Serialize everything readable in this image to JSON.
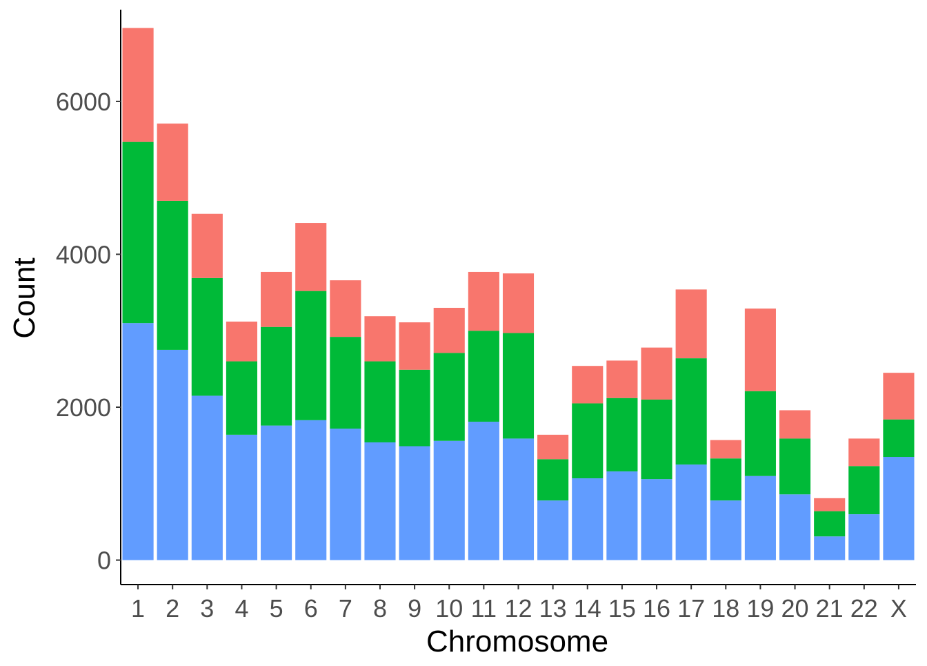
{
  "chart_data": {
    "type": "bar",
    "stacked": true,
    "xlabel": "Chromosome",
    "ylabel": "Count",
    "ylim": [
      -320,
      7200
    ],
    "yticks": [
      0,
      2000,
      4000,
      6000
    ],
    "grid": false,
    "legend": "none",
    "categories": [
      "1",
      "2",
      "3",
      "4",
      "5",
      "6",
      "7",
      "8",
      "9",
      "10",
      "11",
      "12",
      "13",
      "14",
      "15",
      "16",
      "17",
      "18",
      "19",
      "20",
      "21",
      "22",
      "X"
    ],
    "series": [
      {
        "color": "#619CFF",
        "values": [
          3100,
          2750,
          2150,
          1640,
          1760,
          1830,
          1720,
          1540,
          1490,
          1560,
          1810,
          1590,
          780,
          1070,
          1160,
          1060,
          1250,
          780,
          1100,
          860,
          310,
          600,
          1350
        ]
      },
      {
        "color": "#00BA38",
        "values": [
          2370,
          1950,
          1540,
          960,
          1290,
          1690,
          1200,
          1060,
          1000,
          1150,
          1190,
          1380,
          540,
          980,
          960,
          1040,
          1390,
          550,
          1110,
          730,
          330,
          630,
          490
        ]
      },
      {
        "color": "#F8766D",
        "values": [
          1490,
          1010,
          840,
          520,
          720,
          890,
          740,
          590,
          620,
          590,
          770,
          780,
          320,
          490,
          490,
          680,
          900,
          240,
          1080,
          370,
          170,
          360,
          610
        ]
      }
    ]
  }
}
